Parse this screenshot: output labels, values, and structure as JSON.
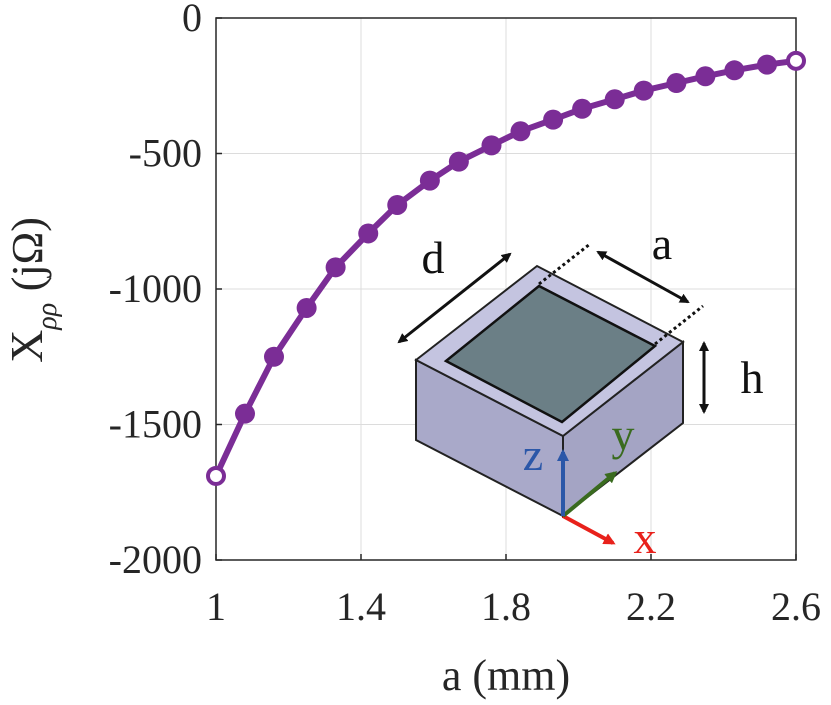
{
  "chart_data": {
    "type": "line",
    "xlabel": "a (mm)",
    "ylabel": {
      "main": "X",
      "sub": "ρρ",
      "unit": "(jΩ)"
    },
    "xlim": [
      1,
      2.6
    ],
    "ylim": [
      -2000,
      0
    ],
    "xticks": [
      1,
      1.4,
      1.8,
      2.2,
      2.6
    ],
    "yticks": [
      0,
      -500,
      -1000,
      -1500,
      -2000
    ],
    "xtick_labels": [
      "1",
      "1.4",
      "1.8",
      "2.2",
      "2.6"
    ],
    "ytick_labels": [
      "0",
      "-500",
      "-1000",
      "-1500",
      "-2000"
    ],
    "grid": true,
    "series": [
      {
        "color": "#7b2d96",
        "marker": "circle",
        "x": [
          1.0,
          1.08,
          1.16,
          1.25,
          1.33,
          1.42,
          1.5,
          1.59,
          1.67,
          1.76,
          1.84,
          1.93,
          2.01,
          2.1,
          2.18,
          2.27,
          2.35,
          2.43,
          2.52,
          2.6
        ],
        "y": [
          -1690,
          -1460,
          -1250,
          -1070,
          -920,
          -795,
          -690,
          -600,
          -530,
          -470,
          -418,
          -375,
          -335,
          -300,
          -268,
          -240,
          -215,
          -193,
          -172,
          -158
        ]
      }
    ],
    "inset": {
      "description_labels": {
        "d": "d",
        "a": "a",
        "h": "h",
        "x": "x",
        "y": "y",
        "z": "z"
      },
      "colors": {
        "x": "#e8211b",
        "y": "#3a6b1f",
        "z": "#2b57a8",
        "box_side": "#a9a9c9",
        "box_top": "#c4c4e0",
        "patch": "#6b7f86"
      }
    }
  }
}
